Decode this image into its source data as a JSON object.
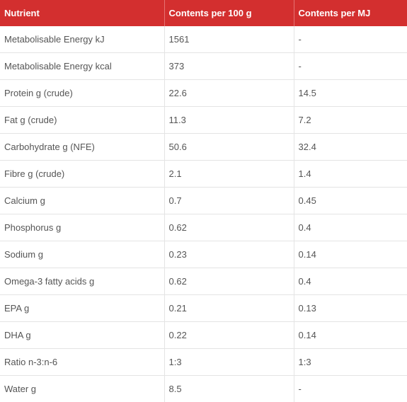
{
  "table": {
    "headers": [
      "Nutrient",
      "Contents per 100 g",
      "Contents per MJ"
    ],
    "rows": [
      [
        "Metabolisable Energy kJ",
        "1561",
        "-"
      ],
      [
        "Metabolisable Energy kcal",
        "373",
        "-"
      ],
      [
        "Protein g (crude)",
        "22.6",
        "14.5"
      ],
      [
        "Fat g (crude)",
        "11.3",
        "7.2"
      ],
      [
        "Carbohydrate g (NFE)",
        "50.6",
        "32.4"
      ],
      [
        "Fibre g (crude)",
        "2.1",
        "1.4"
      ],
      [
        "Calcium g",
        "0.7",
        "0.45"
      ],
      [
        "Phosphorus g",
        "0.62",
        "0.4"
      ],
      [
        "Sodium g",
        "0.23",
        "0.14"
      ],
      [
        "Omega-3 fatty acids g",
        "0.62",
        "0.4"
      ],
      [
        "EPA g",
        "0.21",
        "0.13"
      ],
      [
        "DHA g",
        "0.22",
        "0.14"
      ],
      [
        "Ratio n-3:n-6",
        "1:3",
        "1:3"
      ],
      [
        "Water g",
        "8.5",
        "-"
      ]
    ]
  },
  "colors": {
    "header_background": "#d32f2f",
    "header_text": "#ffffff",
    "cell_text": "#555555",
    "row_divider": "#e4e4e4"
  }
}
